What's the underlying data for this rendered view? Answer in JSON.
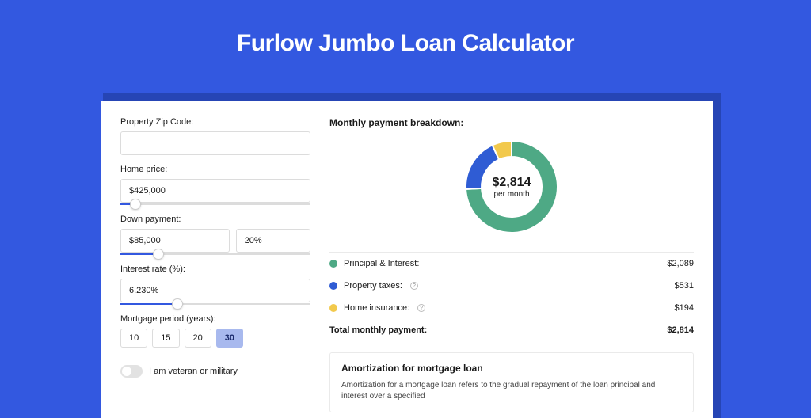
{
  "page": {
    "title": "Furlow Jumbo Loan Calculator",
    "bg_color": "#3358e0",
    "shadow_color": "#2645b5",
    "card_bg": "#ffffff"
  },
  "form": {
    "zip": {
      "label": "Property Zip Code:",
      "value": ""
    },
    "homePrice": {
      "label": "Home price:",
      "value": "$425,000",
      "slider_pct": 8
    },
    "downPayment": {
      "label": "Down payment:",
      "amount": "$85,000",
      "percent": "20%",
      "slider_pct": 20
    },
    "interest": {
      "label": "Interest rate (%):",
      "value": "6.230%",
      "slider_pct": 30
    },
    "period": {
      "label": "Mortgage period (years):",
      "options": [
        "10",
        "15",
        "20",
        "30"
      ],
      "selected": "30"
    },
    "veteran": {
      "label": "I am veteran or military",
      "checked": false
    }
  },
  "breakdown": {
    "title": "Monthly payment breakdown:",
    "donut": {
      "amount": "$2,814",
      "sub": "per month",
      "slices": [
        {
          "key": "principal",
          "color": "#4ea985",
          "pct": 74.2
        },
        {
          "key": "taxes",
          "color": "#2f5cd4",
          "pct": 18.9
        },
        {
          "key": "insurance",
          "color": "#f2c94c",
          "pct": 6.9
        }
      ],
      "bg": "#ffffff"
    },
    "lines": [
      {
        "key": "principal",
        "label": "Principal & Interest:",
        "value": "$2,089",
        "color": "#4ea985",
        "info": false
      },
      {
        "key": "taxes",
        "label": "Property taxes:",
        "value": "$531",
        "color": "#2f5cd4",
        "info": true
      },
      {
        "key": "insurance",
        "label": "Home insurance:",
        "value": "$194",
        "color": "#f2c94c",
        "info": true
      }
    ],
    "total": {
      "label": "Total monthly payment:",
      "value": "$2,814"
    }
  },
  "amortization": {
    "title": "Amortization for mortgage loan",
    "body": "Amortization for a mortgage loan refers to the gradual repayment of the loan principal and interest over a specified"
  }
}
